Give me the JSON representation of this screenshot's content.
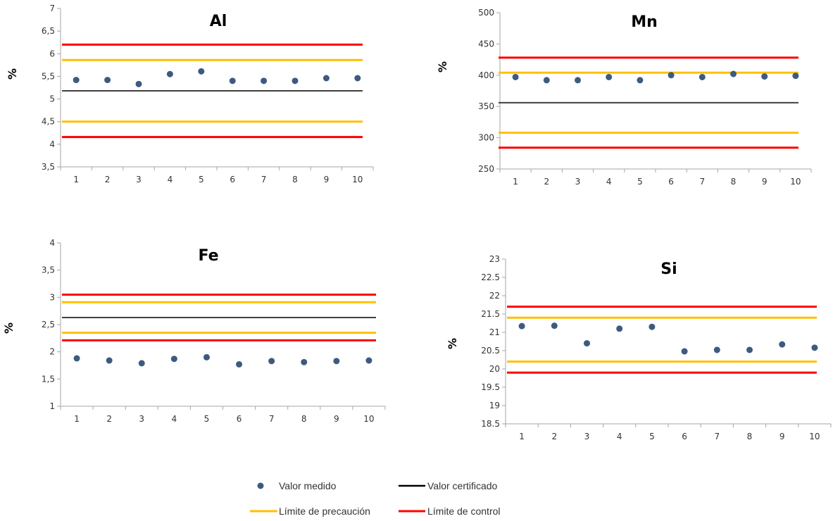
{
  "legend": {
    "measured": "Valor medido",
    "certified": "Valor certificado",
    "warning": "Límite de precaución",
    "control": "Límite de control"
  },
  "colors": {
    "point": "#3d5a80",
    "certified": "#404040",
    "warning": "#ffc000",
    "control": "#ff0000",
    "axis": "#a6a6a6"
  },
  "chart_data": [
    {
      "id": "al",
      "type": "scatter",
      "title": "Al",
      "ylabel": "%",
      "x": [
        1,
        2,
        3,
        4,
        5,
        6,
        7,
        8,
        9,
        10
      ],
      "x_ticks": [
        "1",
        "2",
        "3",
        "4",
        "5",
        "6",
        "7",
        "8",
        "9",
        "10"
      ],
      "y": [
        5.42,
        5.42,
        5.33,
        5.55,
        5.61,
        5.4,
        5.4,
        5.4,
        5.46,
        5.46
      ],
      "ylim": [
        3.5,
        7
      ],
      "y_ticks": [
        "3,5",
        "4",
        "4,5",
        "5",
        "5,5",
        "6",
        "6,5",
        "7"
      ],
      "certified": 5.18,
      "warning": [
        4.5,
        5.86
      ],
      "control": [
        4.16,
        6.2
      ]
    },
    {
      "id": "mn",
      "type": "scatter",
      "title": "Mn",
      "ylabel": "%",
      "x": [
        1,
        2,
        3,
        4,
        5,
        6,
        7,
        8,
        9,
        10
      ],
      "x_ticks": [
        "1",
        "2",
        "3",
        "4",
        "5",
        "6",
        "7",
        "8",
        "9",
        "10"
      ],
      "y": [
        397,
        392,
        392,
        397,
        392,
        400,
        397,
        402,
        398,
        399
      ],
      "ylim": [
        250,
        500
      ],
      "y_ticks": [
        "250",
        "300",
        "350",
        "400",
        "450",
        "500"
      ],
      "certified": 356,
      "warning": [
        308,
        404
      ],
      "control": [
        284,
        428
      ]
    },
    {
      "id": "fe",
      "type": "scatter",
      "title": "Fe",
      "ylabel": "%",
      "x": [
        1,
        2,
        3,
        4,
        5,
        6,
        7,
        8,
        9,
        10
      ],
      "x_ticks": [
        "1",
        "2",
        "3",
        "4",
        "5",
        "6",
        "7",
        "8",
        "9",
        "10"
      ],
      "y": [
        1.88,
        1.84,
        1.79,
        1.87,
        1.9,
        1.77,
        1.83,
        1.81,
        1.83,
        1.84
      ],
      "ylim": [
        1,
        4
      ],
      "y_ticks": [
        "1",
        "1,5",
        "2",
        "2,5",
        "3",
        "3,5",
        "4"
      ],
      "certified": 2.63,
      "warning": [
        2.35,
        2.91
      ],
      "control": [
        2.21,
        3.05
      ]
    },
    {
      "id": "si",
      "type": "scatter",
      "title": "Si",
      "ylabel": "%",
      "x": [
        1,
        2,
        3,
        4,
        5,
        6,
        7,
        8,
        9,
        10
      ],
      "x_ticks": [
        "1",
        "2",
        "3",
        "4",
        "5",
        "6",
        "7",
        "8",
        "9",
        "10"
      ],
      "y": [
        21.17,
        21.18,
        20.7,
        21.1,
        21.15,
        20.48,
        20.52,
        20.52,
        20.67,
        20.58
      ],
      "ylim": [
        18.5,
        23
      ],
      "y_ticks": [
        "18.5",
        "19",
        "19.5",
        "20",
        "20.5",
        "21",
        "21.5",
        "22",
        "22.5",
        "23"
      ],
      "certified": null,
      "warning": [
        20.2,
        21.4
      ],
      "control": [
        19.9,
        21.7
      ]
    }
  ]
}
